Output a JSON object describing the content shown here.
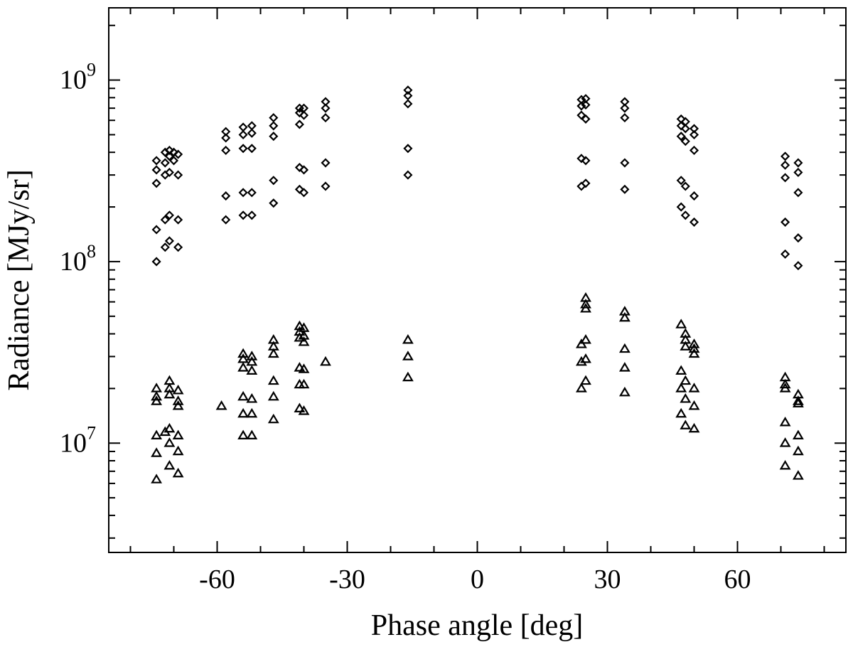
{
  "chart_data": {
    "type": "scatter",
    "title": "",
    "xlabel": "Phase angle [deg]",
    "ylabel": "Radiance [MJy/sr]",
    "xlim": [
      -85,
      85
    ],
    "ylim": [
      2500000,
      2500000000
    ],
    "yscale": "log",
    "x_ticks": [
      -60,
      -30,
      0,
      30,
      60
    ],
    "x_tick_labels": [
      "-60",
      "-30",
      "0",
      "30",
      "60"
    ],
    "y_ticks": [
      10000000,
      100000000,
      1000000000
    ],
    "y_tick_labels": [
      {
        "base": "10",
        "exp": "7"
      },
      {
        "base": "10",
        "exp": "8"
      },
      {
        "base": "10",
        "exp": "9"
      }
    ],
    "grid": false,
    "series": [
      {
        "marker": "diamond",
        "points": [
          [
            -74,
            360000000
          ],
          [
            -74,
            320000000
          ],
          [
            -74,
            270000000
          ],
          [
            -74,
            150000000
          ],
          [
            -74,
            100000000
          ],
          [
            -72,
            400000000
          ],
          [
            -72,
            350000000
          ],
          [
            -72,
            300000000
          ],
          [
            -72,
            170000000
          ],
          [
            -72,
            120000000
          ],
          [
            -71,
            410000000
          ],
          [
            -71,
            380000000
          ],
          [
            -71,
            310000000
          ],
          [
            -71,
            180000000
          ],
          [
            -71,
            130000000
          ],
          [
            -70,
            400000000
          ],
          [
            -70,
            360000000
          ],
          [
            -69,
            390000000
          ],
          [
            -69,
            300000000
          ],
          [
            -69,
            170000000
          ],
          [
            -69,
            120000000
          ],
          [
            -58,
            520000000
          ],
          [
            -58,
            480000000
          ],
          [
            -58,
            410000000
          ],
          [
            -58,
            230000000
          ],
          [
            -58,
            170000000
          ],
          [
            -54,
            550000000
          ],
          [
            -54,
            500000000
          ],
          [
            -54,
            420000000
          ],
          [
            -54,
            240000000
          ],
          [
            -54,
            180000000
          ],
          [
            -52,
            560000000
          ],
          [
            -52,
            510000000
          ],
          [
            -52,
            420000000
          ],
          [
            -52,
            240000000
          ],
          [
            -52,
            180000000
          ],
          [
            -47,
            620000000
          ],
          [
            -47,
            560000000
          ],
          [
            -47,
            490000000
          ],
          [
            -47,
            280000000
          ],
          [
            -47,
            210000000
          ],
          [
            -41,
            700000000
          ],
          [
            -41,
            660000000
          ],
          [
            -41,
            570000000
          ],
          [
            -41,
            330000000
          ],
          [
            -41,
            250000000
          ],
          [
            -40,
            700000000
          ],
          [
            -40,
            640000000
          ],
          [
            -40,
            320000000
          ],
          [
            -40,
            240000000
          ],
          [
            -35,
            760000000
          ],
          [
            -35,
            700000000
          ],
          [
            -35,
            620000000
          ],
          [
            -35,
            350000000
          ],
          [
            -35,
            260000000
          ],
          [
            -16,
            880000000
          ],
          [
            -16,
            820000000
          ],
          [
            -16,
            740000000
          ],
          [
            -16,
            420000000
          ],
          [
            -16,
            300000000
          ],
          [
            24,
            780000000
          ],
          [
            24,
            720000000
          ],
          [
            24,
            640000000
          ],
          [
            24,
            370000000
          ],
          [
            24,
            260000000
          ],
          [
            25,
            790000000
          ],
          [
            25,
            730000000
          ],
          [
            25,
            610000000
          ],
          [
            25,
            360000000
          ],
          [
            25,
            270000000
          ],
          [
            34,
            760000000
          ],
          [
            34,
            700000000
          ],
          [
            34,
            620000000
          ],
          [
            34,
            350000000
          ],
          [
            34,
            250000000
          ],
          [
            47,
            610000000
          ],
          [
            47,
            560000000
          ],
          [
            47,
            490000000
          ],
          [
            47,
            280000000
          ],
          [
            47,
            200000000
          ],
          [
            48,
            590000000
          ],
          [
            48,
            540000000
          ],
          [
            48,
            460000000
          ],
          [
            48,
            260000000
          ],
          [
            48,
            180000000
          ],
          [
            50,
            540000000
          ],
          [
            50,
            500000000
          ],
          [
            50,
            410000000
          ],
          [
            50,
            230000000
          ],
          [
            50,
            165000000
          ],
          [
            71,
            380000000
          ],
          [
            71,
            340000000
          ],
          [
            71,
            290000000
          ],
          [
            71,
            165000000
          ],
          [
            71,
            110000000
          ],
          [
            74,
            350000000
          ],
          [
            74,
            310000000
          ],
          [
            74,
            240000000
          ],
          [
            74,
            135000000
          ],
          [
            74,
            95000000
          ]
        ]
      },
      {
        "marker": "triangle",
        "points": [
          [
            -74,
            20000000
          ],
          [
            -74,
            18000000
          ],
          [
            -74,
            17000000
          ],
          [
            -74,
            11000000
          ],
          [
            -74,
            8800000
          ],
          [
            -74,
            6300000
          ],
          [
            -72,
            11500000
          ],
          [
            -71,
            22000000
          ],
          [
            -71,
            20000000
          ],
          [
            -71,
            18500000
          ],
          [
            -71,
            12000000
          ],
          [
            -71,
            10000000
          ],
          [
            -71,
            7500000
          ],
          [
            -69,
            19500000
          ],
          [
            -69,
            17000000
          ],
          [
            -69,
            16000000
          ],
          [
            -69,
            11000000
          ],
          [
            -69,
            9000000
          ],
          [
            -69,
            6800000
          ],
          [
            -59,
            16000000
          ],
          [
            -54,
            31000000
          ],
          [
            -54,
            29000000
          ],
          [
            -54,
            26000000
          ],
          [
            -54,
            18000000
          ],
          [
            -54,
            14500000
          ],
          [
            -54,
            11000000
          ],
          [
            -52,
            30000000
          ],
          [
            -52,
            28000000
          ],
          [
            -52,
            25000000
          ],
          [
            -52,
            17500000
          ],
          [
            -52,
            14500000
          ],
          [
            -52,
            11000000
          ],
          [
            -47,
            37000000
          ],
          [
            -47,
            34000000
          ],
          [
            -47,
            31000000
          ],
          [
            -47,
            22000000
          ],
          [
            -47,
            18000000
          ],
          [
            -47,
            13500000
          ],
          [
            -41,
            44000000
          ],
          [
            -41,
            41000000
          ],
          [
            -41,
            38000000
          ],
          [
            -41,
            26000000
          ],
          [
            -41,
            21000000
          ],
          [
            -41,
            15500000
          ],
          [
            -40,
            43000000
          ],
          [
            -40,
            39000000
          ],
          [
            -40,
            36000000
          ],
          [
            -40,
            25500000
          ],
          [
            -40,
            21000000
          ],
          [
            -40,
            15000000
          ],
          [
            -35,
            28000000
          ],
          [
            -16,
            37000000
          ],
          [
            -16,
            30000000
          ],
          [
            -16,
            23000000
          ],
          [
            24,
            35000000
          ],
          [
            24,
            28000000
          ],
          [
            24,
            20000000
          ],
          [
            25,
            63000000
          ],
          [
            25,
            58000000
          ],
          [
            25,
            55000000
          ],
          [
            25,
            37000000
          ],
          [
            25,
            29000000
          ],
          [
            25,
            22000000
          ],
          [
            34,
            53000000
          ],
          [
            34,
            49000000
          ],
          [
            34,
            33000000
          ],
          [
            34,
            26000000
          ],
          [
            34,
            19000000
          ],
          [
            47,
            45000000
          ],
          [
            47,
            25000000
          ],
          [
            47,
            20000000
          ],
          [
            47,
            14500000
          ],
          [
            48,
            40000000
          ],
          [
            48,
            37000000
          ],
          [
            48,
            34000000
          ],
          [
            48,
            22000000
          ],
          [
            48,
            17500000
          ],
          [
            48,
            12500000
          ],
          [
            50,
            35000000
          ],
          [
            50,
            33000000
          ],
          [
            50,
            31000000
          ],
          [
            50,
            20000000
          ],
          [
            50,
            16000000
          ],
          [
            50,
            12000000
          ],
          [
            71,
            23000000
          ],
          [
            71,
            21000000
          ],
          [
            71,
            20000000
          ],
          [
            71,
            13000000
          ],
          [
            71,
            10000000
          ],
          [
            71,
            7500000
          ],
          [
            74,
            18500000
          ],
          [
            74,
            17000000
          ],
          [
            74,
            16500000
          ],
          [
            74,
            11000000
          ],
          [
            74,
            9000000
          ],
          [
            74,
            6600000
          ]
        ]
      }
    ]
  }
}
